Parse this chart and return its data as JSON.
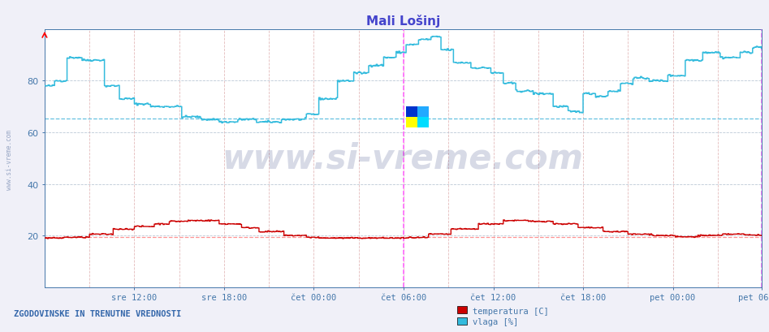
{
  "title": "Mali Lošinj",
  "bg_color": "#f0f0f8",
  "plot_bg_color": "#ffffff",
  "title_color": "#4444cc",
  "axis_label_color": "#4477aa",
  "grid_color_v": "#ddaaaa",
  "grid_color_h": "#aabbcc",
  "ylim": [
    0,
    100
  ],
  "yticks": [
    20,
    40,
    60,
    80
  ],
  "xtick_labels": [
    "sre 12:00",
    "sre 18:00",
    "čet 00:00",
    "čet 06:00",
    "čet 12:00",
    "čet 18:00",
    "pet 00:00",
    "pet 06:00"
  ],
  "hline_temp": 19.5,
  "hline_vlaga": 65.5,
  "hline_temp_color": "#ff8888",
  "hline_vlaga_color": "#55bbdd",
  "vline_color": "#ff55ff",
  "temp_color": "#cc0000",
  "vlaga_color": "#33bbdd",
  "watermark": "www.si-vreme.com",
  "watermark_color": "#223377",
  "watermark_alpha": 0.18,
  "footer_text": "ZGODOVINSKE IN TRENUTNE VREDNOSTI",
  "footer_color": "#3366aa",
  "legend_labels": [
    "temperatura [C]",
    "vlaga [%]"
  ],
  "legend_colors": [
    "#cc0000",
    "#33bbdd"
  ],
  "sidebar_text": "www.si-vreme.com",
  "sidebar_color": "#8899bb"
}
